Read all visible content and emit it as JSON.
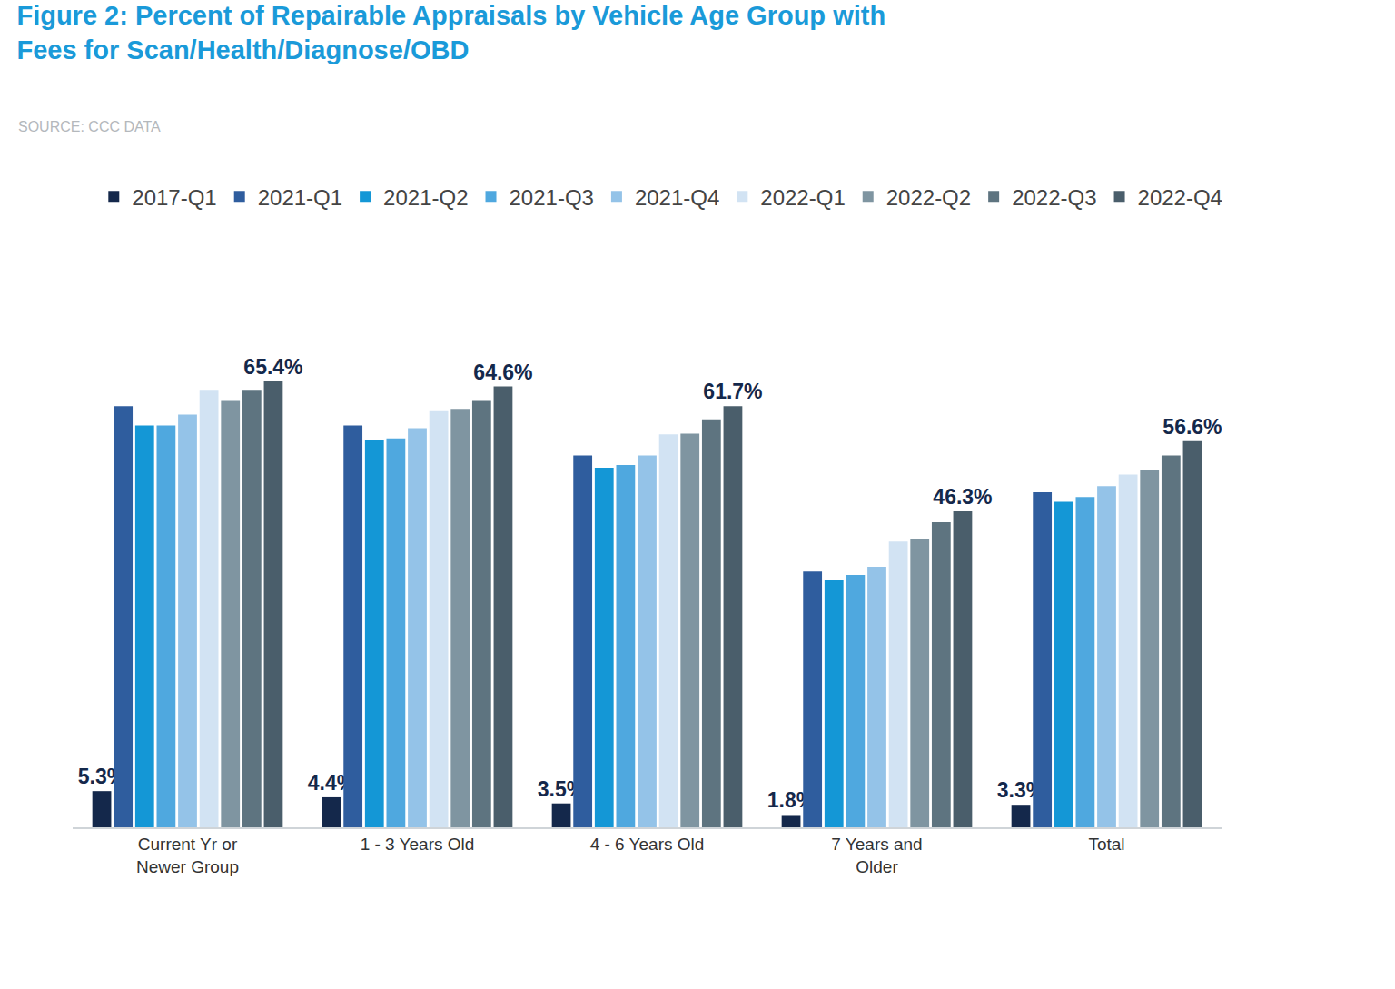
{
  "chart_data": {
    "type": "bar",
    "title": "Figure 2: Percent of Repairable Appraisals by Vehicle Age Group with Fees for Scan/Health/Diagnose/OBD",
    "subtitle": "SOURCE: CCC DATA",
    "categories": [
      "Current Yr or Newer Group",
      "1 - 3 Years Old",
      "4 - 6 Years Old",
      "7 Years and Older",
      "Total"
    ],
    "ylim": [
      0,
      70
    ],
    "tick_labels": "x",
    "grid": false,
    "legend": "top",
    "series": [
      {
        "name": "2017-Q1",
        "color": "#14284b",
        "values": [
          5.3,
          4.4,
          3.5,
          1.8,
          3.3
        ],
        "data_labels": true,
        "value_labels": [
          "5.3%",
          "4.4%",
          "3.5%",
          "1.8%",
          "3.3%"
        ]
      },
      {
        "name": "2021-Q1",
        "color": "#2f5d9e",
        "values": [
          61.7,
          58.9,
          54.5,
          37.5,
          49.1
        ]
      },
      {
        "name": "2021-Q2",
        "color": "#1497d6",
        "values": [
          58.9,
          56.8,
          52.7,
          36.2,
          47.7
        ]
      },
      {
        "name": "2021-Q3",
        "color": "#4fa8df",
        "values": [
          58.9,
          57.0,
          53.1,
          37.0,
          48.4
        ]
      },
      {
        "name": "2021-Q4",
        "color": "#94c3e8",
        "values": [
          60.5,
          58.5,
          54.5,
          38.2,
          50.0
        ]
      },
      {
        "name": "2022-Q1",
        "color": "#d2e3f3",
        "values": [
          64.1,
          61.0,
          57.6,
          41.9,
          51.7
        ]
      },
      {
        "name": "2022-Q2",
        "color": "#7f95a1",
        "values": [
          62.6,
          61.3,
          57.7,
          42.3,
          52.4
        ]
      },
      {
        "name": "2022-Q3",
        "color": "#5e7480",
        "values": [
          64.1,
          62.6,
          59.8,
          44.7,
          54.5
        ]
      },
      {
        "name": "2022-Q4",
        "color": "#4a5e6b",
        "values": [
          65.4,
          64.6,
          61.7,
          46.3,
          56.6
        ],
        "data_labels": true,
        "value_labels": [
          "65.4%",
          "64.6%",
          "61.7%",
          "46.3%",
          "56.6%"
        ]
      }
    ]
  }
}
